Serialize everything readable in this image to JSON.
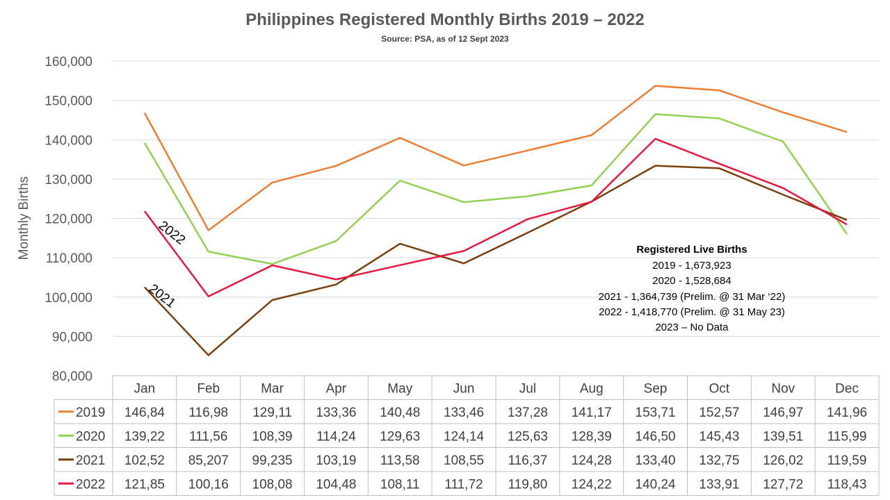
{
  "chart_data": {
    "type": "line",
    "title": "Philippines Registered Monthly Births 2019 – 2022",
    "subtitle": "Source: PSA, as of 12 Sept 2023",
    "ylabel": "Monthly Births",
    "xlabel": "",
    "ylim": [
      80000,
      160000
    ],
    "yticks": [
      "80,000",
      "90,000",
      "100,000",
      "110,000",
      "120,000",
      "130,000",
      "140,000",
      "150,000",
      "160,000"
    ],
    "ytick_values": [
      80000,
      90000,
      100000,
      110000,
      120000,
      130000,
      140000,
      150000,
      160000
    ],
    "grid": true,
    "legend": "data-table",
    "categories": [
      "Jan",
      "Feb",
      "Mar",
      "Apr",
      "May",
      "Jun",
      "Jul",
      "Aug",
      "Sep",
      "Oct",
      "Nov",
      "Dec"
    ],
    "series": [
      {
        "name": "2019",
        "color": "#ED7D31",
        "values": [
          146840,
          116980,
          129110,
          133360,
          140480,
          133460,
          137280,
          141170,
          153710,
          152570,
          146970,
          141960
        ],
        "table_values": [
          "146,84",
          "116,98",
          "129,11",
          "133,36",
          "140,48",
          "133,46",
          "137,28",
          "141,17",
          "153,71",
          "152,57",
          "146,97",
          "141,96"
        ]
      },
      {
        "name": "2020",
        "color": "#92D050",
        "values": [
          139220,
          111560,
          108390,
          114240,
          129630,
          124140,
          125630,
          128390,
          146500,
          145430,
          139510,
          115990
        ],
        "table_values": [
          "139,22",
          "111,56",
          "108,39",
          "114,24",
          "129,63",
          "124,14",
          "125,63",
          "128,39",
          "146,50",
          "145,43",
          "139,51",
          "115,99"
        ]
      },
      {
        "name": "2021",
        "color": "#7B3F0C",
        "values": [
          102520,
          85207,
          99235,
          103190,
          113580,
          108550,
          116370,
          124280,
          133400,
          132750,
          126020,
          119590
        ],
        "table_values": [
          "102,52",
          "85,207",
          "99,235",
          "103,19",
          "113,58",
          "108,55",
          "116,37",
          "124,28",
          "133,40",
          "132,75",
          "126,02",
          "119,59"
        ]
      },
      {
        "name": "2022",
        "color": "#E8173F",
        "values": [
          121850,
          100160,
          108080,
          104480,
          108110,
          111720,
          119800,
          124220,
          140240,
          133910,
          127720,
          118430
        ],
        "table_values": [
          "121,85",
          "100,16",
          "108,08",
          "104,48",
          "108,11",
          "111,72",
          "119,80",
          "124,22",
          "140,24",
          "133,91",
          "127,72",
          "118,43"
        ]
      }
    ],
    "line_labels": [
      "2022",
      "2021"
    ],
    "annotation": {
      "heading": "Registered Live Births",
      "lines": [
        "2019 - 1,673,923",
        "2020 - 1,528,684",
        "2021 - 1,364,739 (Prelim. @ 31 Mar ‘22)",
        "2022 - 1,418,770 (Prelim. @ 31 May 23)",
        "2023 – No Data"
      ]
    }
  }
}
